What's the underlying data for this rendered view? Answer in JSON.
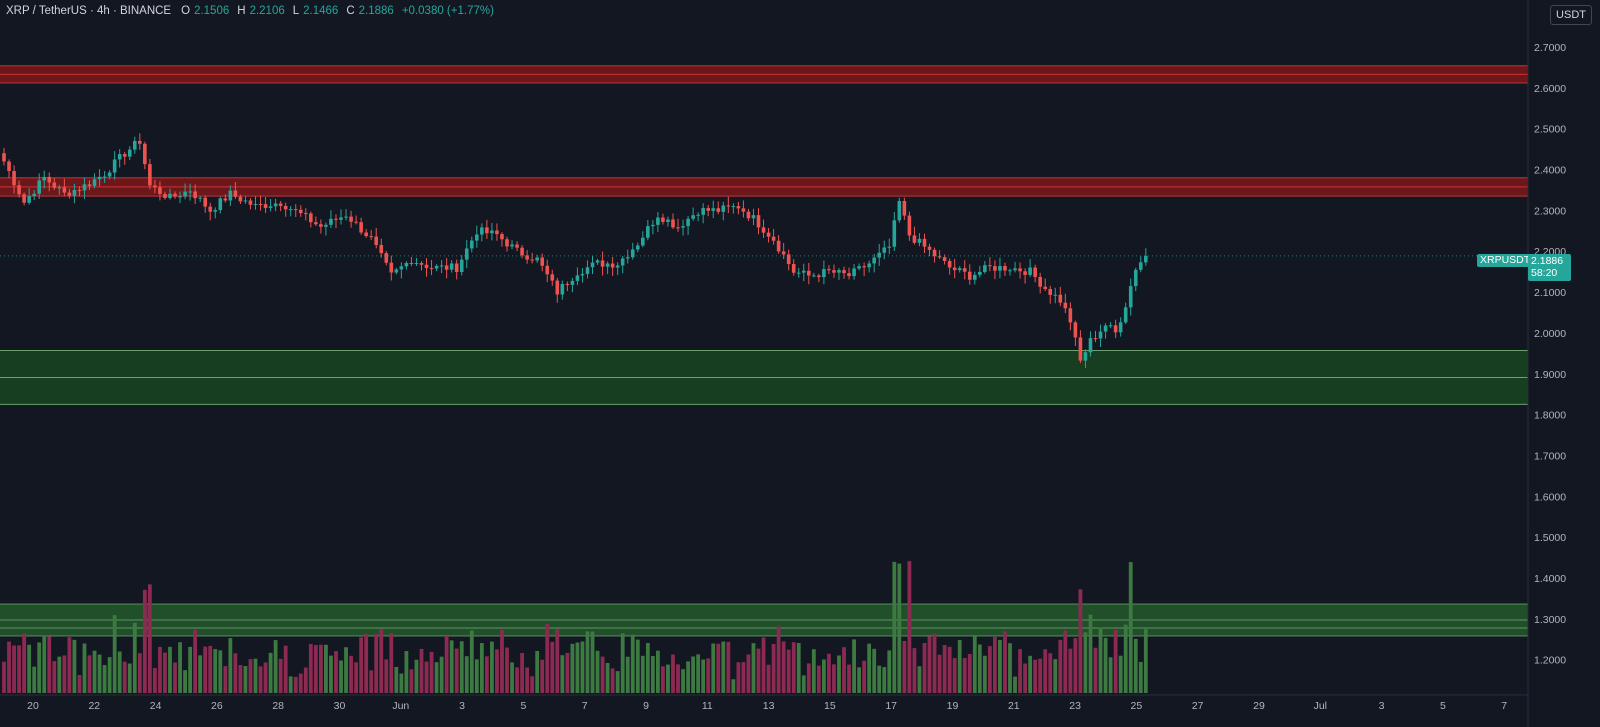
{
  "legend": {
    "symbol": "XRP / TetherUS · 4h · BINANCE",
    "open_label": "O",
    "open": "2.1506",
    "high_label": "H",
    "high": "2.2106",
    "low_label": "L",
    "low": "2.1466",
    "close_label": "C",
    "close": "2.1886",
    "change": "+0.0380 (+1.77%)"
  },
  "currency_button": "USDT",
  "last_price": {
    "ticker": "XRPUSDT",
    "price": "2.1886",
    "countdown": "58:20"
  },
  "colors": {
    "background": "#131722",
    "up": "#26a69a",
    "down": "#ef5350",
    "volume_up": "#3d7a42",
    "volume_down": "#8c2a52",
    "resistance_zone": "#8b1a1a",
    "support_zone": "#1b5e20",
    "axis_text": "#b2b5be"
  },
  "chart_data": {
    "type": "candlestick",
    "y_axis": {
      "ticks": [
        "2.7000",
        "2.6000",
        "2.5000",
        "2.4000",
        "2.3000",
        "2.2000",
        "2.1000",
        "2.0000",
        "1.9000",
        "1.8000",
        "1.7000",
        "1.6000",
        "1.5000",
        "1.4000",
        "1.3000",
        "1.2000"
      ],
      "range": [
        1.15,
        2.76
      ]
    },
    "x_axis": {
      "ticks": [
        "20",
        "22",
        "24",
        "26",
        "28",
        "30",
        "Jun",
        "3",
        "5",
        "7",
        "9",
        "11",
        "13",
        "15",
        "17",
        "19",
        "21",
        "23",
        "25",
        "27",
        "29",
        "Jul",
        "3",
        "5",
        "7"
      ]
    },
    "zones": [
      {
        "kind": "resistance",
        "low": 2.612,
        "high": 2.654
      },
      {
        "kind": "resistance",
        "low": 2.335,
        "high": 2.38
      },
      {
        "kind": "support",
        "low": 1.825,
        "high": 1.957
      }
    ],
    "path_points": [
      [
        0,
        2.42
      ],
      [
        4,
        2.32
      ],
      [
        8,
        2.38
      ],
      [
        12,
        2.34
      ],
      [
        16,
        2.36
      ],
      [
        20,
        2.39
      ],
      [
        24,
        2.44
      ],
      [
        27,
        2.47
      ],
      [
        29,
        2.36
      ],
      [
        33,
        2.33
      ],
      [
        37,
        2.35
      ],
      [
        41,
        2.3
      ],
      [
        45,
        2.34
      ],
      [
        50,
        2.31
      ],
      [
        55,
        2.32
      ],
      [
        59,
        2.29
      ],
      [
        63,
        2.26
      ],
      [
        68,
        2.29
      ],
      [
        73,
        2.23
      ],
      [
        77,
        2.14
      ],
      [
        81,
        2.18
      ],
      [
        85,
        2.16
      ],
      [
        90,
        2.16
      ],
      [
        94,
        2.25
      ],
      [
        98,
        2.24
      ],
      [
        102,
        2.2
      ],
      [
        106,
        2.18
      ],
      [
        110,
        2.1
      ],
      [
        114,
        2.15
      ],
      [
        118,
        2.17
      ],
      [
        122,
        2.17
      ],
      [
        126,
        2.22
      ],
      [
        130,
        2.29
      ],
      [
        134,
        2.26
      ],
      [
        138,
        2.3
      ],
      [
        142,
        2.3
      ],
      [
        146,
        2.31
      ],
      [
        149,
        2.28
      ],
      [
        153,
        2.23
      ],
      [
        157,
        2.15
      ],
      [
        160,
        2.14
      ],
      [
        164,
        2.15
      ],
      [
        168,
        2.14
      ],
      [
        172,
        2.17
      ],
      [
        176,
        2.21
      ],
      [
        178,
        2.32
      ],
      [
        180,
        2.24
      ],
      [
        184,
        2.2
      ],
      [
        188,
        2.16
      ],
      [
        192,
        2.14
      ],
      [
        196,
        2.16
      ],
      [
        200,
        2.16
      ],
      [
        204,
        2.15
      ],
      [
        207,
        2.11
      ],
      [
        210,
        2.08
      ],
      [
        212,
        2.03
      ],
      [
        214,
        1.93
      ],
      [
        216,
        1.98
      ],
      [
        219,
        2.02
      ],
      [
        221,
        2.0
      ],
      [
        223,
        2.07
      ],
      [
        225,
        2.16
      ],
      [
        227,
        2.19
      ]
    ],
    "last_close": 2.1886
  }
}
